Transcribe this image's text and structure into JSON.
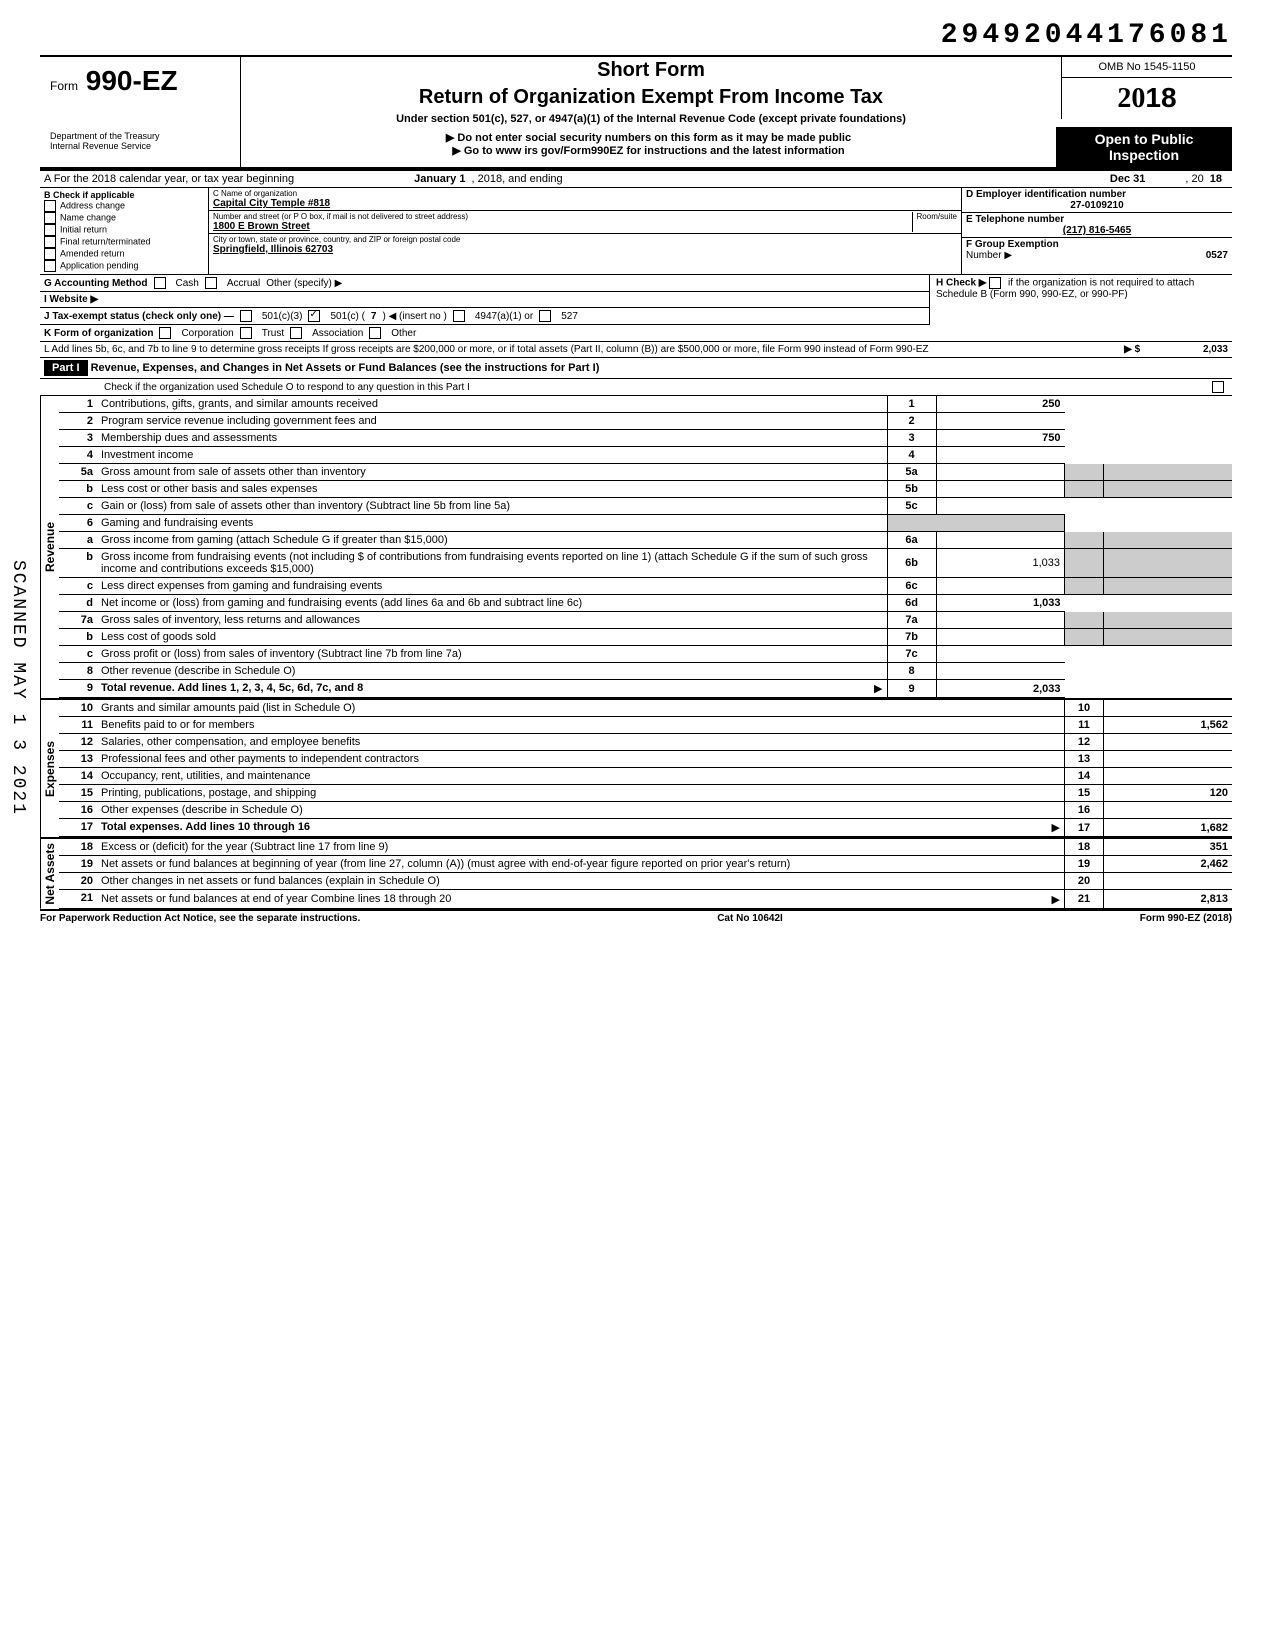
{
  "header_number": "29492044176081",
  "page_num": "1",
  "form_prefix": "Form",
  "form_number": "990-EZ",
  "short_form": "Short Form",
  "main_title": "Return of Organization Exempt From Income Tax",
  "subtitle": "Under section 501(c), 527, or 4947(a)(1) of the Internal Revenue Code (except private foundations)",
  "omb": "OMB No 1545-1150",
  "year": "2018",
  "year_prefix": "20",
  "dept": "Department of the Treasury\nInternal Revenue Service",
  "instruct1": "▶ Do not enter social security numbers on this form as it may be made public",
  "instruct2": "▶ Go to www irs gov/Form990EZ for instructions and the latest information",
  "open_public_1": "Open to Public",
  "open_public_2": "Inspection",
  "row_a": {
    "label": "A For the 2018 calendar year, or tax year beginning",
    "begin": "January 1",
    "mid": ", 2018, and ending",
    "end": "Dec 31",
    "year_suffix": ", 20",
    "year_val": "18"
  },
  "col_b": {
    "header": "B Check if applicable",
    "items": [
      "Address change",
      "Name change",
      "Initial return",
      "Final return/terminated",
      "Amended return",
      "Application pending"
    ]
  },
  "col_c": {
    "name_label": "C Name of organization",
    "name": "Capital City Temple #818",
    "street_label": "Number and street (or P O box, if mail is not delivered to street address)",
    "street": "1800 E Brown Street",
    "city_label": "City or town, state or province, country, and ZIP or foreign postal code",
    "city": "Springfield, Illinois 62703",
    "room_label": "Room/suite"
  },
  "col_d": {
    "ein_label": "D Employer identification number",
    "ein": "27-0109210",
    "phone_label": "E Telephone number",
    "phone": "(217) 816-5465",
    "group_label": "F Group Exemption",
    "group_label2": "Number ▶",
    "group": "0527"
  },
  "g_row": {
    "label": "G Accounting Method",
    "opt1": "Cash",
    "opt2": "Accrual",
    "opt3": "Other (specify) ▶"
  },
  "h_row": {
    "label": "H Check ▶",
    "text": "if the organization is not required to attach Schedule B (Form 990, 990-EZ, or 990-PF)"
  },
  "i_row": "I Website ▶",
  "j_row": {
    "label": "J Tax-exempt status (check only one) —",
    "opt1": "501(c)(3)",
    "opt2": "501(c) (",
    "opt2_num": "7",
    "opt2_suffix": ") ◀ (insert no )",
    "opt3": "4947(a)(1) or",
    "opt4": "527"
  },
  "k_row": {
    "label": "K Form of organization",
    "opt1": "Corporation",
    "opt2": "Trust",
    "opt3": "Association",
    "opt4": "Other"
  },
  "l_row": "L Add lines 5b, 6c, and 7b to line 9 to determine gross receipts If gross receipts are $200,000 or more, or if total assets (Part II, column (B)) are $500,000 or more, file Form 990 instead of Form 990-EZ",
  "l_amount": "2,033",
  "part1": {
    "label": "Part I",
    "title": "Revenue, Expenses, and Changes in Net Assets or Fund Balances (see the instructions for Part I)",
    "check_text": "Check if the organization used Schedule O to respond to any question in this Part I"
  },
  "sections": {
    "revenue": "Revenue",
    "expenses": "Expenses",
    "net_assets": "Net Assets"
  },
  "lines": [
    {
      "n": "1",
      "desc": "Contributions, gifts, grants, and similar amounts received",
      "ln": "1",
      "amt": "250"
    },
    {
      "n": "2",
      "desc": "Program service revenue including government fees and",
      "ln": "2",
      "amt": ""
    },
    {
      "n": "3",
      "desc": "Membership dues and assessments",
      "ln": "3",
      "amt": "750"
    },
    {
      "n": "4",
      "desc": "Investment income",
      "ln": "4",
      "amt": ""
    },
    {
      "n": "5a",
      "desc": "Gross amount from sale of assets other than inventory",
      "mid_n": "5a",
      "mid_v": ""
    },
    {
      "n": "b",
      "desc": "Less cost or other basis and sales expenses",
      "mid_n": "5b",
      "mid_v": ""
    },
    {
      "n": "c",
      "desc": "Gain or (loss) from sale of assets other than inventory (Subtract line 5b from line 5a)",
      "ln": "5c",
      "amt": ""
    },
    {
      "n": "6",
      "desc": "Gaming and fundraising events"
    },
    {
      "n": "a",
      "desc": "Gross income from gaming (attach Schedule G if greater than $15,000)",
      "mid_n": "6a",
      "mid_v": ""
    },
    {
      "n": "b",
      "desc": "Gross income from fundraising events (not including $               of contributions from fundraising events reported on line 1) (attach Schedule G if the sum of such gross income and contributions exceeds $15,000)",
      "mid_n": "6b",
      "mid_v": "1,033"
    },
    {
      "n": "c",
      "desc": "Less direct expenses from gaming and fundraising events",
      "mid_n": "6c",
      "mid_v": ""
    },
    {
      "n": "d",
      "desc": "Net income or (loss) from gaming and fundraising events (add lines 6a and 6b and subtract line 6c)",
      "ln": "6d",
      "amt": "1,033"
    },
    {
      "n": "7a",
      "desc": "Gross sales of inventory, less returns and allowances",
      "mid_n": "7a",
      "mid_v": ""
    },
    {
      "n": "b",
      "desc": "Less cost of goods sold",
      "mid_n": "7b",
      "mid_v": ""
    },
    {
      "n": "c",
      "desc": "Gross profit or (loss) from sales of inventory (Subtract line 7b from line 7a)",
      "ln": "7c",
      "amt": ""
    },
    {
      "n": "8",
      "desc": "Other revenue (describe in Schedule O)",
      "ln": "8",
      "amt": ""
    },
    {
      "n": "9",
      "desc": "Total revenue. Add lines 1, 2, 3, 4, 5c, 6d, 7c, and 8",
      "ln": "9",
      "amt": "2,033",
      "bold": true,
      "arrow": true
    }
  ],
  "exp_lines": [
    {
      "n": "10",
      "desc": "Grants and similar amounts paid (list in Schedule O)",
      "ln": "10",
      "amt": ""
    },
    {
      "n": "11",
      "desc": "Benefits paid to or for members",
      "ln": "11",
      "amt": "1,562"
    },
    {
      "n": "12",
      "desc": "Salaries, other compensation, and employee benefits",
      "ln": "12",
      "amt": ""
    },
    {
      "n": "13",
      "desc": "Professional fees and other payments to independent contractors",
      "ln": "13",
      "amt": ""
    },
    {
      "n": "14",
      "desc": "Occupancy, rent, utilities, and maintenance",
      "ln": "14",
      "amt": ""
    },
    {
      "n": "15",
      "desc": "Printing, publications, postage, and shipping",
      "ln": "15",
      "amt": "120"
    },
    {
      "n": "16",
      "desc": "Other expenses (describe in Schedule O)",
      "ln": "16",
      "amt": ""
    },
    {
      "n": "17",
      "desc": "Total expenses. Add lines 10 through 16",
      "ln": "17",
      "amt": "1,682",
      "bold": true,
      "arrow": true
    }
  ],
  "net_lines": [
    {
      "n": "18",
      "desc": "Excess or (deficit) for the year (Subtract line 17 from line 9)",
      "ln": "18",
      "amt": "351"
    },
    {
      "n": "19",
      "desc": "Net assets or fund balances at beginning of year (from line 27, column (A)) (must agree with end-of-year figure reported on prior year's return)",
      "ln": "19",
      "amt": "2,462"
    },
    {
      "n": "20",
      "desc": "Other changes in net assets or fund balances (explain in Schedule O)",
      "ln": "20",
      "amt": ""
    },
    {
      "n": "21",
      "desc": "Net assets or fund balances at end of year Combine lines 18 through 20",
      "ln": "21",
      "amt": "2,813",
      "arrow": true
    }
  ],
  "footer": {
    "left": "For Paperwork Reduction Act Notice, see the separate instructions.",
    "mid": "Cat No 10642I",
    "right": "Form 990-EZ (2018)"
  },
  "scanned": "SCANNED MAY 1 3 2021"
}
